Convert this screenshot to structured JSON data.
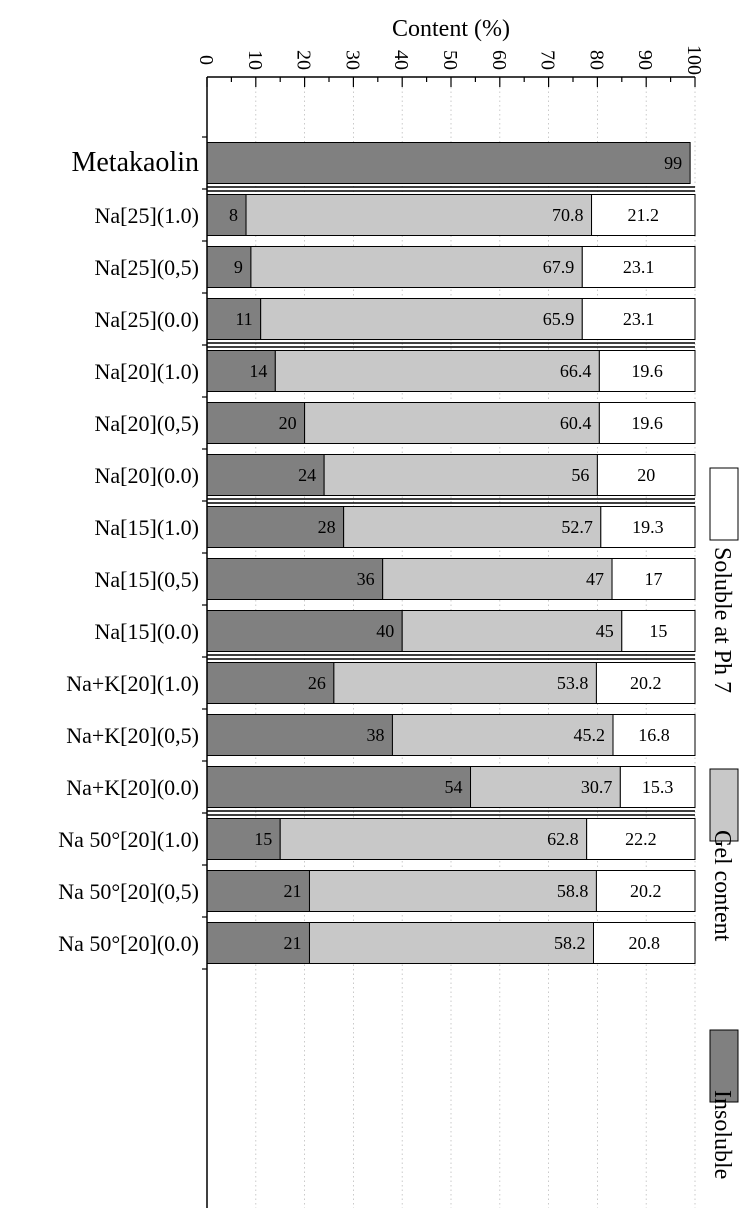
{
  "chart_data": {
    "type": "bar",
    "orientation": "horizontal",
    "stacked": true,
    "title": "",
    "xlabel": "Content (%)",
    "ylabel": "",
    "xlim": [
      0,
      100
    ],
    "x_ticks": [
      "0",
      "10",
      "20",
      "30",
      "40",
      "50",
      "60",
      "70",
      "80",
      "90",
      "100"
    ],
    "x_axis_position": "top",
    "grid": "dotted vertical",
    "legend_position": "right",
    "categories": [
      "Metakaolin",
      "Na[25](1.0)",
      "Na[25](0,5)",
      "Na[25](0.0)",
      "Na[20](1.0)",
      "Na[20](0,5)",
      "Na[20](0.0)",
      "Na[15](1.0)",
      "Na[15](0,5)",
      "Na[15](0.0)",
      "Na+K[20](1.0)",
      "Na+K[20](0,5)",
      "Na+K[20](0.0)",
      "Na 50°[20](1.0)",
      "Na 50°[20](0,5)",
      "Na 50°[20](0.0)"
    ],
    "group_separators_after": [
      0,
      3,
      6,
      9,
      12
    ],
    "series": [
      {
        "name": "Insoluble",
        "color": "#808080",
        "values": [
          99,
          8,
          9,
          11,
          14,
          20,
          24,
          28,
          36,
          40,
          26,
          38,
          54,
          15,
          21,
          21
        ],
        "labels": [
          "99",
          "8",
          "9",
          "11",
          "14",
          "20",
          "24",
          "28",
          "36",
          "40",
          "26",
          "38",
          "54",
          "15",
          "21",
          "21"
        ]
      },
      {
        "name": "Gel content",
        "color": "#c8c8c8",
        "values": [
          0,
          70.8,
          67.9,
          65.9,
          66.4,
          60.4,
          56,
          52.7,
          47,
          45,
          53.8,
          45.2,
          30.7,
          62.8,
          58.8,
          58.2
        ],
        "labels": [
          "",
          "70.8",
          "67.9",
          "65.9",
          "66.4",
          "60.4",
          "56",
          "52.7",
          "47",
          "45",
          "53.8",
          "45.2",
          "30.7",
          "62.8",
          "58.8",
          "58.2"
        ]
      },
      {
        "name": "Soluble at Ph 7",
        "color": "#ffffff",
        "values": [
          0,
          21.2,
          23.1,
          23.1,
          19.6,
          19.6,
          20,
          19.3,
          17,
          15,
          20.2,
          16.8,
          15.3,
          22.2,
          20.2,
          20.8
        ],
        "labels": [
          "",
          "21.2",
          "23.1",
          "23.1",
          "19.6",
          "19.6",
          "20",
          "19.3",
          "17",
          "15",
          "20.2",
          "16.8",
          "15.3",
          "22.2",
          "20.2",
          "20.8"
        ]
      }
    ]
  }
}
